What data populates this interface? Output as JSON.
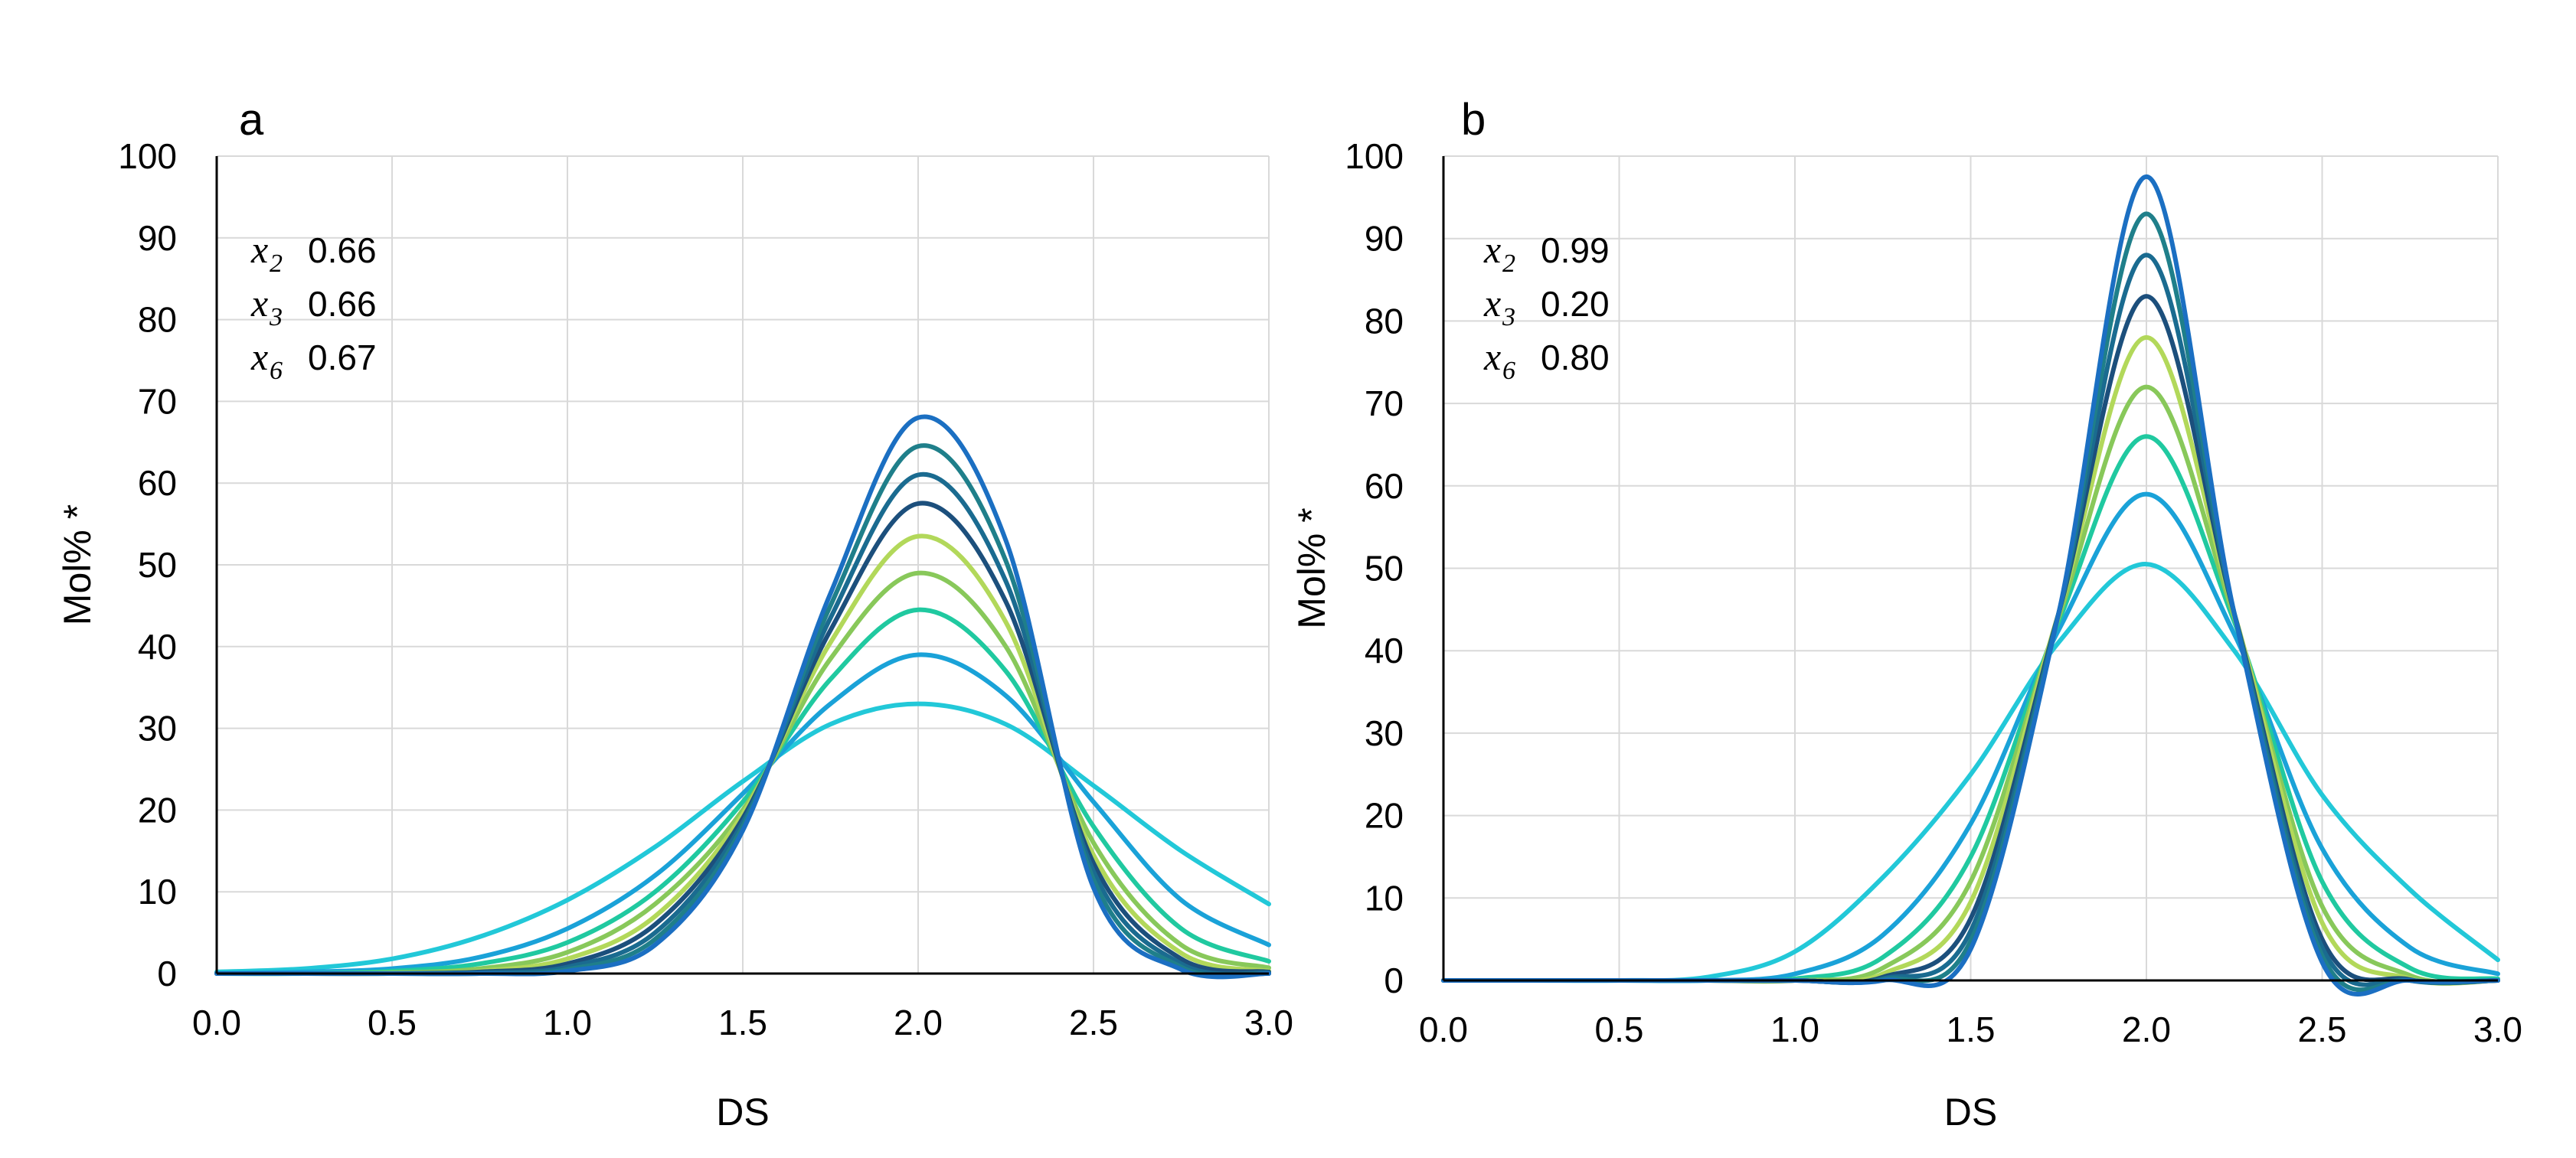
{
  "chart_data": [
    {
      "type": "line",
      "panel_label": "a",
      "xlabel": "DS",
      "ylabel": "Mol% *",
      "xlim": [
        0,
        3
      ],
      "ylim": [
        0,
        100
      ],
      "x_ticks": [
        "0.0",
        "0.5",
        "1.0",
        "1.5",
        "2.0",
        "2.5",
        "3.0"
      ],
      "y_ticks": [
        "0",
        "10",
        "20",
        "30",
        "40",
        "50",
        "60",
        "70",
        "80",
        "90",
        "100"
      ],
      "grid": true,
      "annotations": [
        {
          "var": "x",
          "sub": "2",
          "value": "0.66"
        },
        {
          "var": "x",
          "sub": "3",
          "value": "0.66"
        },
        {
          "var": "x",
          "sub": "6",
          "value": "0.67"
        }
      ],
      "series": [
        {
          "color": "#22c8d8",
          "x": [
            0.0,
            0.25,
            0.5,
            0.75,
            1.0,
            1.25,
            1.5,
            1.75,
            2.0,
            2.25,
            2.5,
            2.75,
            3.0
          ],
          "values": [
            0.2,
            0.6,
            1.8,
            4.5,
            9.0,
            15.5,
            23.5,
            30.5,
            33.0,
            30.5,
            23.0,
            15.0,
            8.5
          ]
        },
        {
          "color": "#1aa2d8",
          "x": [
            0.0,
            0.25,
            0.5,
            0.75,
            1.0,
            1.25,
            1.5,
            1.75,
            2.0,
            2.25,
            2.5,
            2.75,
            3.0
          ],
          "values": [
            0.0,
            0.2,
            0.6,
            2.0,
            5.5,
            12.0,
            22.0,
            33.0,
            39.0,
            34.0,
            21.0,
            9.0,
            3.5
          ]
        },
        {
          "color": "#20c9a0",
          "x": [
            0.0,
            0.25,
            0.5,
            0.75,
            1.0,
            1.25,
            1.5,
            1.75,
            2.0,
            2.25,
            2.5,
            2.75,
            3.0
          ],
          "values": [
            0.0,
            0.0,
            0.3,
            1.2,
            3.8,
            10.0,
            21.0,
            36.0,
            44.5,
            37.0,
            18.0,
            5.5,
            1.5
          ]
        },
        {
          "color": "#88c85a",
          "x": [
            0.0,
            0.25,
            0.5,
            0.75,
            1.0,
            1.25,
            1.5,
            1.75,
            2.0,
            2.25,
            2.5,
            2.75,
            3.0
          ],
          "values": [
            0.0,
            0.0,
            0.1,
            0.6,
            2.6,
            8.5,
            20.0,
            38.5,
            49.0,
            40.0,
            16.0,
            3.5,
            0.7
          ]
        },
        {
          "color": "#b2d85a",
          "x": [
            0.0,
            0.25,
            0.5,
            0.75,
            1.0,
            1.25,
            1.5,
            1.75,
            2.0,
            2.25,
            2.5,
            2.75,
            3.0
          ],
          "values": [
            0.0,
            0.0,
            0.0,
            0.3,
            1.8,
            7.0,
            19.5,
            40.5,
            53.5,
            43.0,
            14.5,
            2.5,
            0.3
          ]
        },
        {
          "color": "#1c4f7c",
          "x": [
            0.0,
            0.25,
            0.5,
            0.75,
            1.0,
            1.25,
            1.5,
            1.75,
            2.0,
            2.25,
            2.5,
            2.75,
            3.0
          ],
          "values": [
            0.0,
            0.0,
            0.0,
            0.2,
            1.2,
            6.0,
            19.0,
            42.0,
            57.5,
            45.5,
            13.5,
            1.8,
            0.2
          ]
        },
        {
          "color": "#1a6b90",
          "x": [
            0.0,
            0.25,
            0.5,
            0.75,
            1.0,
            1.25,
            1.5,
            1.75,
            2.0,
            2.25,
            2.5,
            2.75,
            3.0
          ],
          "values": [
            0.0,
            0.0,
            0.0,
            0.1,
            0.8,
            5.0,
            18.5,
            43.5,
            61.0,
            48.0,
            12.5,
            1.2,
            0.1
          ]
        },
        {
          "color": "#1f7f8a",
          "x": [
            0.0,
            0.25,
            0.5,
            0.75,
            1.0,
            1.25,
            1.5,
            1.75,
            2.0,
            2.25,
            2.5,
            2.75,
            3.0
          ],
          "values": [
            0.0,
            0.0,
            0.0,
            0.0,
            0.5,
            4.2,
            18.0,
            45.0,
            64.5,
            50.5,
            11.5,
            0.8,
            0.0
          ]
        },
        {
          "color": "#1b6fc2",
          "x": [
            0.0,
            0.25,
            0.5,
            0.75,
            1.0,
            1.25,
            1.5,
            1.75,
            2.0,
            2.25,
            2.5,
            2.75,
            3.0
          ],
          "values": [
            0.0,
            0.0,
            0.0,
            0.0,
            0.3,
            3.5,
            17.5,
            46.5,
            68.0,
            53.0,
            10.5,
            0.5,
            0.0
          ]
        }
      ]
    },
    {
      "type": "line",
      "panel_label": "b",
      "xlabel": "DS",
      "ylabel": "Mol% *",
      "xlim": [
        0,
        3
      ],
      "ylim": [
        0,
        100
      ],
      "x_ticks": [
        "0.0",
        "0.5",
        "1.0",
        "1.5",
        "2.0",
        "2.5",
        "3.0"
      ],
      "y_ticks": [
        "0",
        "10",
        "20",
        "30",
        "40",
        "50",
        "60",
        "70",
        "80",
        "90",
        "100"
      ],
      "grid": true,
      "annotations": [
        {
          "var": "x",
          "sub": "2",
          "value": "0.99"
        },
        {
          "var": "x",
          "sub": "3",
          "value": "0.20"
        },
        {
          "var": "x",
          "sub": "6",
          "value": "0.80"
        }
      ],
      "series": [
        {
          "color": "#22c8d8",
          "x": [
            0.0,
            0.25,
            0.5,
            0.75,
            1.0,
            1.25,
            1.5,
            1.75,
            2.0,
            2.25,
            2.5,
            2.75,
            3.0
          ],
          "values": [
            0.0,
            0.0,
            0.0,
            0.4,
            3.5,
            12.5,
            25.0,
            41.0,
            50.5,
            40.0,
            22.5,
            11.0,
            2.5
          ]
        },
        {
          "color": "#1aa2d8",
          "x": [
            0.0,
            0.25,
            0.5,
            0.75,
            1.0,
            1.25,
            1.5,
            1.75,
            2.0,
            2.25,
            2.5,
            2.75,
            3.0
          ],
          "values": [
            0.0,
            0.0,
            0.0,
            0.0,
            0.8,
            5.5,
            19.0,
            42.5,
            59.0,
            42.0,
            16.0,
            4.0,
            0.8
          ]
        },
        {
          "color": "#20c9a0",
          "x": [
            0.0,
            0.25,
            0.5,
            0.75,
            1.0,
            1.25,
            1.5,
            1.75,
            2.0,
            2.25,
            2.5,
            2.75,
            3.0
          ],
          "values": [
            0.0,
            0.0,
            0.0,
            0.0,
            0.2,
            2.8,
            15.0,
            43.5,
            66.0,
            43.5,
            12.0,
            1.5,
            0.2
          ]
        },
        {
          "color": "#88c85a",
          "x": [
            0.0,
            0.25,
            0.5,
            0.75,
            1.0,
            1.25,
            1.5,
            1.75,
            2.0,
            2.25,
            2.5,
            2.75,
            3.0
          ],
          "values": [
            0.0,
            0.0,
            0.0,
            0.0,
            0.0,
            1.5,
            12.0,
            44.0,
            72.0,
            44.0,
            9.0,
            0.6,
            0.0
          ]
        },
        {
          "color": "#b2d85a",
          "x": [
            0.0,
            0.25,
            0.5,
            0.75,
            1.0,
            1.25,
            1.5,
            1.75,
            2.0,
            2.25,
            2.5,
            2.75,
            3.0
          ],
          "values": [
            0.0,
            0.0,
            0.0,
            0.0,
            0.0,
            0.8,
            9.5,
            44.5,
            78.0,
            44.5,
            7.0,
            0.2,
            0.0
          ]
        },
        {
          "color": "#1c4f7c",
          "x": [
            0.0,
            0.25,
            0.5,
            0.75,
            1.0,
            1.25,
            1.5,
            1.75,
            2.0,
            2.25,
            2.5,
            2.75,
            3.0
          ],
          "values": [
            0.0,
            0.0,
            0.0,
            0.0,
            0.0,
            0.4,
            7.5,
            44.5,
            83.0,
            44.5,
            5.0,
            0.1,
            0.0
          ]
        },
        {
          "color": "#1a6b90",
          "x": [
            0.0,
            0.25,
            0.5,
            0.75,
            1.0,
            1.25,
            1.5,
            1.75,
            2.0,
            2.25,
            2.5,
            2.75,
            3.0
          ],
          "values": [
            0.0,
            0.0,
            0.0,
            0.0,
            0.0,
            0.2,
            6.0,
            44.5,
            88.0,
            44.5,
            4.0,
            0.0,
            0.0
          ]
        },
        {
          "color": "#1f7f8a",
          "x": [
            0.0,
            0.25,
            0.5,
            0.75,
            1.0,
            1.25,
            1.5,
            1.75,
            2.0,
            2.25,
            2.5,
            2.75,
            3.0
          ],
          "values": [
            0.0,
            0.0,
            0.0,
            0.0,
            0.0,
            0.1,
            4.8,
            44.5,
            93.0,
            44.5,
            3.0,
            0.0,
            0.0
          ]
        },
        {
          "color": "#1b6fc2",
          "x": [
            0.0,
            0.25,
            0.5,
            0.75,
            1.0,
            1.25,
            1.5,
            1.75,
            2.0,
            2.25,
            2.5,
            2.75,
            3.0
          ],
          "values": [
            0.0,
            0.0,
            0.0,
            0.0,
            0.0,
            0.0,
            3.8,
            44.5,
            97.5,
            44.5,
            2.2,
            0.0,
            0.0
          ]
        }
      ]
    }
  ]
}
